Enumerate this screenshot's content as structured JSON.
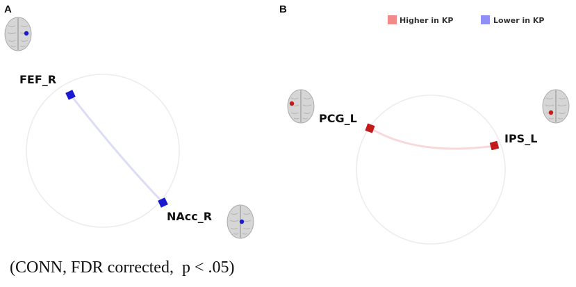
{
  "panels": {
    "a": {
      "letter": "A",
      "nodes": [
        {
          "label": "FEF_R"
        },
        {
          "label": "NAcc_R"
        }
      ]
    },
    "b": {
      "letter": "B",
      "nodes": [
        {
          "label": "PCG_L"
        },
        {
          "label": "IPS_L"
        }
      ]
    }
  },
  "legend": {
    "higher": {
      "label": "Higher in KP",
      "color": "#f28a8a"
    },
    "lower": {
      "label": "Lower in KP",
      "color": "#8f8ff5"
    }
  },
  "colors": {
    "lower_node": "#1a1ad0",
    "higher_node": "#c41a1a",
    "lower_edge": "#dcdcf7",
    "higher_edge": "#f7d9d9",
    "ring": "#ececec"
  },
  "caption": "(CONN, FDR corrected,  p < .05)"
}
